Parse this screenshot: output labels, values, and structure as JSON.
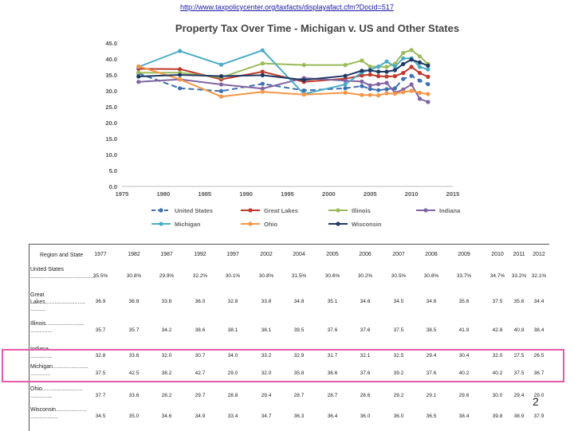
{
  "url": "http://www.taxpolicycenter.org/taxfacts/displayafact.cfm?Docid=517",
  "page_number": "2",
  "table": {
    "header_label": "Region and State",
    "years": [
      "1977",
      "1982",
      "1987",
      "1992",
      "1997",
      "2002",
      "2004",
      "2005",
      "2006",
      "2007",
      "2008",
      "2009",
      "2010",
      "2011",
      "2012"
    ],
    "rows": [
      {
        "label": "United States ..........................................",
        "values": [
          "35.5%",
          "30.8%",
          "29.9%",
          "32.2%",
          "30.1%",
          "30.8%",
          "31.5%",
          "30.6%",
          "30.2%",
          "30.5%",
          "30.8%",
          "33.7%",
          "34.7%",
          "33.2%",
          "32.1%"
        ]
      },
      {
        "label": "Great Lakes.......................... ..........",
        "values": [
          "36.9",
          "36.8",
          "33.6",
          "36.0",
          "32.8",
          "33.8",
          "34.8",
          "35.1",
          "34.6",
          "34.5",
          "34.6",
          "35.6",
          "37.5",
          "35.6",
          "34.4"
        ]
      },
      {
        "label": "Illinois......................... ..............",
        "values": [
          "35.7",
          "35.7",
          "34.2",
          "38.6",
          "38.1",
          "38.1",
          "39.5",
          "37.6",
          "37.6",
          "37.5",
          "38.5",
          "41.9",
          "42.8",
          "40.8",
          "38.4"
        ]
      },
      {
        "label": "Indiana.......................... ..............",
        "values": [
          "32.8",
          "33.6",
          "32.0",
          "30.7",
          "34.0",
          "33.2",
          "32.9",
          "31.7",
          "32.1",
          "32.5",
          "29.4",
          "30.4",
          "32.0",
          "27.5",
          "26.5"
        ]
      },
      {
        "label": "Michigan....................... .............",
        "values": [
          "37.5",
          "42.5",
          "38.2",
          "42.7",
          "29.0",
          "32.0",
          "35.8",
          "36.6",
          "37.6",
          "39.2",
          "37.6",
          "40.2",
          "40.2",
          "37.5",
          "36.7"
        ]
      },
      {
        "label": "Ohio.......................... ..............",
        "values": [
          "37.7",
          "33.6",
          "28.2",
          "29.7",
          "28.8",
          "29.4",
          "28.7",
          "28.7",
          "28.6",
          "29.2",
          "29.1",
          "29.6",
          "30.0",
          "29.4",
          "29.0"
        ]
      },
      {
        "label": "Wisconsin.................... ..................",
        "values": [
          "34.5",
          "35.0",
          "34.6",
          "34.9",
          "33.4",
          "34.7",
          "36.3",
          "36.4",
          "36.0",
          "36.0",
          "36.5",
          "38.4",
          "39.8",
          "38.9",
          "37.9"
        ]
      }
    ]
  },
  "chart_data": {
    "type": "line",
    "title": "Property Tax Over Time - Michigan v. US and Other States",
    "xlabel": "",
    "ylabel": "",
    "xlim": [
      1975,
      2015
    ],
    "ylim": [
      0,
      45
    ],
    "x_ticks": [
      "1975",
      "1980",
      "1985",
      "1990",
      "1995",
      "2000",
      "2005",
      "2010",
      "2015"
    ],
    "y_ticks": [
      "0.0",
      "5.0",
      "10.0",
      "15.0",
      "20.0",
      "25.0",
      "30.0",
      "35.0",
      "40.0",
      "45.0"
    ],
    "grid": false,
    "legend_position": "bottom",
    "x": [
      1977,
      1982,
      1987,
      1992,
      1997,
      2002,
      2004,
      2005,
      2006,
      2007,
      2008,
      2009,
      2010,
      2011,
      2012
    ],
    "series": [
      {
        "name": "United States",
        "color": "#3e6fb0",
        "dashed": true,
        "values": [
          35.5,
          30.8,
          29.9,
          32.2,
          30.1,
          30.8,
          31.5,
          30.6,
          30.2,
          30.5,
          30.8,
          33.7,
          34.7,
          33.2,
          32.1
        ]
      },
      {
        "name": "Great Lakes",
        "color": "#c0392b",
        "dashed": false,
        "values": [
          36.9,
          36.8,
          33.6,
          36.0,
          32.8,
          33.8,
          34.8,
          35.1,
          34.6,
          34.5,
          34.6,
          35.6,
          37.5,
          35.6,
          34.4
        ]
      },
      {
        "name": "Illinois",
        "color": "#9bbb59",
        "dashed": false,
        "values": [
          35.7,
          35.7,
          34.2,
          38.6,
          38.1,
          38.1,
          39.5,
          37.6,
          37.6,
          37.5,
          38.5,
          41.9,
          42.8,
          40.8,
          38.4
        ]
      },
      {
        "name": "Indiana",
        "color": "#8064a2",
        "dashed": false,
        "values": [
          32.8,
          33.6,
          32.0,
          30.7,
          34.0,
          33.2,
          32.9,
          31.7,
          32.1,
          32.5,
          29.4,
          30.4,
          32.0,
          27.5,
          26.5
        ]
      },
      {
        "name": "Michigan",
        "color": "#4bacc6",
        "dashed": false,
        "values": [
          37.5,
          42.5,
          38.2,
          42.7,
          29.0,
          32.0,
          35.8,
          36.6,
          37.6,
          39.2,
          37.6,
          40.2,
          40.2,
          37.5,
          36.7
        ]
      },
      {
        "name": "Ohio",
        "color": "#f79646",
        "dashed": false,
        "values": [
          37.7,
          33.6,
          28.2,
          29.7,
          28.8,
          29.4,
          28.7,
          28.7,
          28.6,
          29.2,
          29.1,
          29.6,
          30.0,
          29.4,
          29.0
        ]
      },
      {
        "name": "Wisconsin",
        "color": "#1f3864",
        "dashed": false,
        "values": [
          34.5,
          35.0,
          34.6,
          34.9,
          33.4,
          34.7,
          36.3,
          36.4,
          36.0,
          36.0,
          36.5,
          38.4,
          39.8,
          38.9,
          37.9
        ]
      }
    ]
  }
}
